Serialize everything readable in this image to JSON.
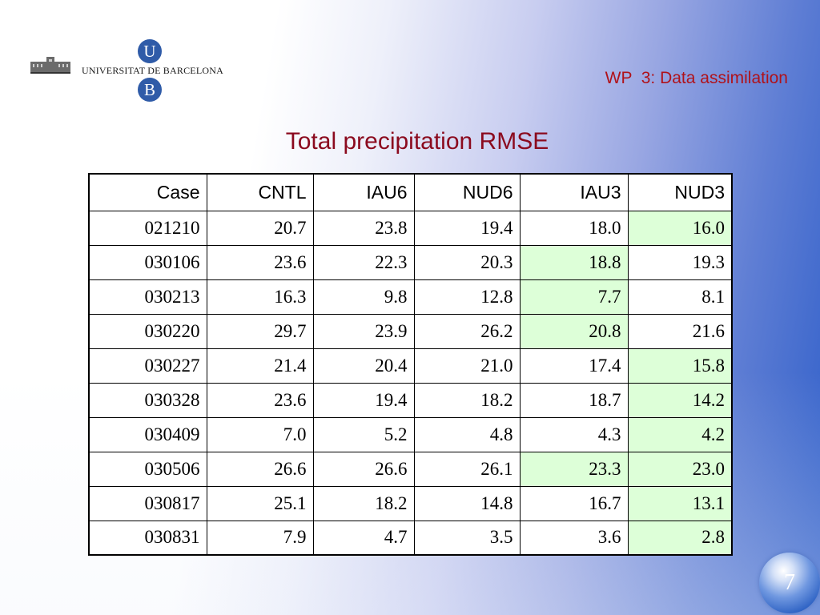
{
  "logo": {
    "u_letter": "U",
    "b_letter": "B",
    "name": "UNIVERSITAT DE BARCELONA"
  },
  "header": {
    "section": "WP  3: Data assimilation",
    "title": "Total precipitation RMSE"
  },
  "table": {
    "columns": [
      "Case",
      "CNTL",
      "IAU6",
      "NUD6",
      "IAU3",
      "NUD3"
    ],
    "highlight_color": "#ddffd8",
    "rows": [
      {
        "cells": [
          "021210",
          "20.7",
          "23.8",
          "19.4",
          "18.0",
          "16.0"
        ],
        "highlight_col": 5
      },
      {
        "cells": [
          "030106",
          "23.6",
          "22.3",
          "20.3",
          "18.8",
          "19.3"
        ],
        "highlight_col": 4
      },
      {
        "cells": [
          "030213",
          "16.3",
          "9.8",
          "12.8",
          "7.7",
          "8.1"
        ],
        "highlight_col": 4
      },
      {
        "cells": [
          "030220",
          "29.7",
          "23.9",
          "26.2",
          "20.8",
          "21.6"
        ],
        "highlight_col": 4
      },
      {
        "cells": [
          "030227",
          "21.4",
          "20.4",
          "21.0",
          "17.4",
          "15.8"
        ],
        "highlight_col": 5
      },
      {
        "cells": [
          "030328",
          "23.6",
          "19.4",
          "18.2",
          "18.7",
          "14.2"
        ],
        "highlight_col": 5
      },
      {
        "cells": [
          "030409",
          "7.0",
          "5.2",
          "4.8",
          "4.3",
          "4.2"
        ],
        "highlight_col": 5
      },
      {
        "cells": [
          "030506",
          "26.6",
          "26.6",
          "26.1",
          "23.3",
          "23.0"
        ],
        "highlight_col": [
          4,
          5
        ]
      },
      {
        "cells": [
          "030817",
          "25.1",
          "18.2",
          "14.8",
          "16.7",
          "13.1"
        ],
        "highlight_col": 5
      },
      {
        "cells": [
          "030831",
          "7.9",
          "4.7",
          "3.5",
          "3.6",
          "2.8"
        ],
        "highlight_col": 5
      }
    ]
  },
  "footer": {
    "page_number": "7"
  }
}
